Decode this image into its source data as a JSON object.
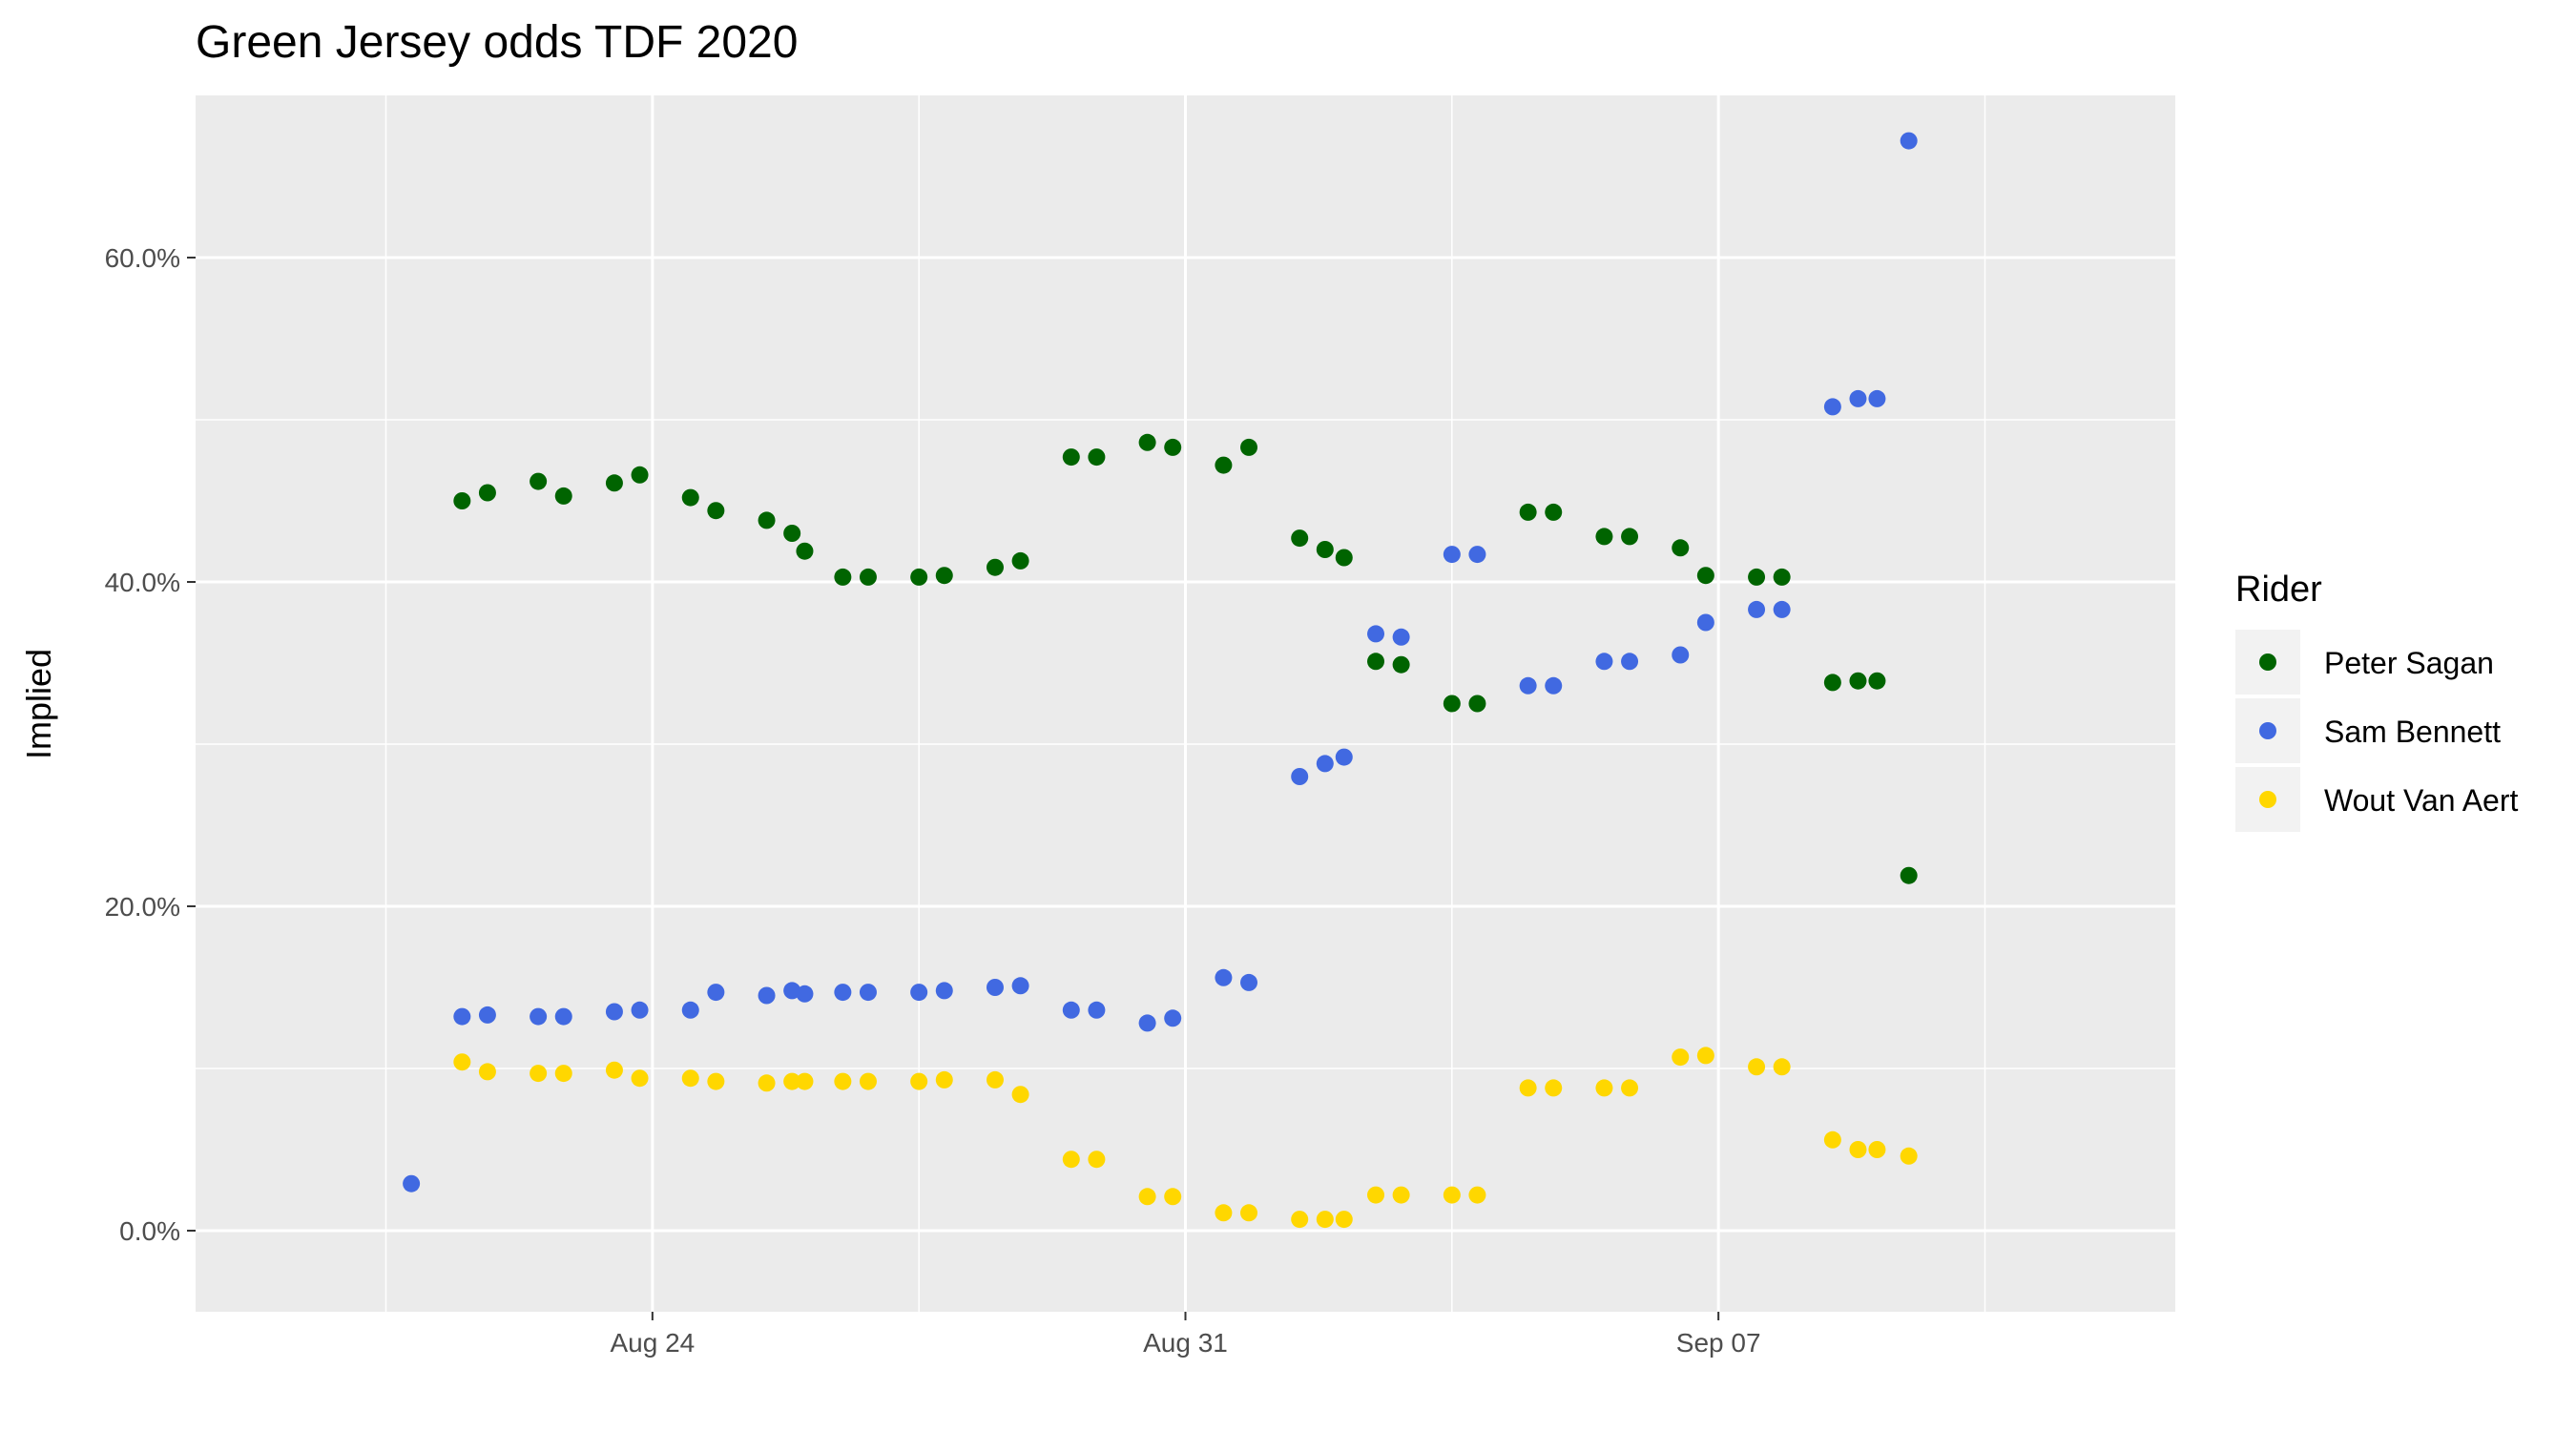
{
  "chart_data": {
    "type": "scatter",
    "title": "Green Jersey odds TDF 2020",
    "xlabel": "",
    "ylabel": "Implied",
    "x_axis": {
      "type": "date",
      "range": [
        "2020-08-18",
        "2020-09-13"
      ],
      "ticks": [
        {
          "value": "2020-08-24",
          "label": "Aug 24"
        },
        {
          "value": "2020-08-31",
          "label": "Aug 31"
        },
        {
          "value": "2020-09-07",
          "label": "Sep 07"
        }
      ],
      "minor_ticks": [
        "2020-08-20T12:00",
        "2020-08-27T12:00",
        "2020-09-03T12:00",
        "2020-09-10T12:00"
      ]
    },
    "y_axis": {
      "range": [
        -0.05,
        0.7
      ],
      "ticks": [
        {
          "value": 0.0,
          "label": "0.0%"
        },
        {
          "value": 0.2,
          "label": "20.0%"
        },
        {
          "value": 0.4,
          "label": "40.0%"
        },
        {
          "value": 0.6,
          "label": "60.0%"
        }
      ],
      "minor_ticks": [
        0.1,
        0.3,
        0.5
      ]
    },
    "grid": true,
    "legend": {
      "title": "Rider",
      "position": "right"
    },
    "series": [
      {
        "name": "Peter Sagan",
        "color": "#006400",
        "points": [
          [
            "2020-08-21T12:00",
            0.45
          ],
          [
            "2020-08-21T20:00",
            0.455
          ],
          [
            "2020-08-22T12:00",
            0.462
          ],
          [
            "2020-08-22T20:00",
            0.453
          ],
          [
            "2020-08-23T12:00",
            0.461
          ],
          [
            "2020-08-23T20:00",
            0.466
          ],
          [
            "2020-08-24T12:00",
            0.452
          ],
          [
            "2020-08-24T20:00",
            0.444
          ],
          [
            "2020-08-25T12:00",
            0.438
          ],
          [
            "2020-08-25T20:00",
            0.43
          ],
          [
            "2020-08-26T00:00",
            0.419
          ],
          [
            "2020-08-26T12:00",
            0.403
          ],
          [
            "2020-08-26T20:00",
            0.403
          ],
          [
            "2020-08-27T12:00",
            0.403
          ],
          [
            "2020-08-27T20:00",
            0.404
          ],
          [
            "2020-08-28T12:00",
            0.409
          ],
          [
            "2020-08-28T20:00",
            0.413
          ],
          [
            "2020-08-29T12:00",
            0.477
          ],
          [
            "2020-08-29T20:00",
            0.477
          ],
          [
            "2020-08-30T12:00",
            0.486
          ],
          [
            "2020-08-30T20:00",
            0.483
          ],
          [
            "2020-08-31T12:00",
            0.472
          ],
          [
            "2020-08-31T20:00",
            0.483
          ],
          [
            "2020-09-01T12:00",
            0.427
          ],
          [
            "2020-09-01T20:00",
            0.42
          ],
          [
            "2020-09-02T02:00",
            0.415
          ],
          [
            "2020-09-02T12:00",
            0.351
          ],
          [
            "2020-09-02T20:00",
            0.349
          ],
          [
            "2020-09-03T12:00",
            0.325
          ],
          [
            "2020-09-03T20:00",
            0.325
          ],
          [
            "2020-09-04T12:00",
            0.443
          ],
          [
            "2020-09-04T20:00",
            0.443
          ],
          [
            "2020-09-05T12:00",
            0.428
          ],
          [
            "2020-09-05T20:00",
            0.428
          ],
          [
            "2020-09-06T12:00",
            0.421
          ],
          [
            "2020-09-06T20:00",
            0.404
          ],
          [
            "2020-09-07T12:00",
            0.403
          ],
          [
            "2020-09-07T20:00",
            0.403
          ],
          [
            "2020-09-08T12:00",
            0.338
          ],
          [
            "2020-09-08T20:00",
            0.339
          ],
          [
            "2020-09-09T02:00",
            0.339
          ],
          [
            "2020-09-09T12:00",
            0.219
          ]
        ]
      },
      {
        "name": "Sam Bennett",
        "color": "#4169E1",
        "points": [
          [
            "2020-08-20T20:00",
            0.029
          ],
          [
            "2020-08-21T12:00",
            0.132
          ],
          [
            "2020-08-21T20:00",
            0.133
          ],
          [
            "2020-08-22T12:00",
            0.132
          ],
          [
            "2020-08-22T20:00",
            0.132
          ],
          [
            "2020-08-23T12:00",
            0.135
          ],
          [
            "2020-08-23T20:00",
            0.136
          ],
          [
            "2020-08-24T12:00",
            0.136
          ],
          [
            "2020-08-24T20:00",
            0.147
          ],
          [
            "2020-08-25T12:00",
            0.145
          ],
          [
            "2020-08-25T20:00",
            0.148
          ],
          [
            "2020-08-26T00:00",
            0.146
          ],
          [
            "2020-08-26T12:00",
            0.147
          ],
          [
            "2020-08-26T20:00",
            0.147
          ],
          [
            "2020-08-27T12:00",
            0.147
          ],
          [
            "2020-08-27T20:00",
            0.148
          ],
          [
            "2020-08-28T12:00",
            0.15
          ],
          [
            "2020-08-28T20:00",
            0.151
          ],
          [
            "2020-08-29T12:00",
            0.136
          ],
          [
            "2020-08-29T20:00",
            0.136
          ],
          [
            "2020-08-30T12:00",
            0.128
          ],
          [
            "2020-08-30T20:00",
            0.131
          ],
          [
            "2020-08-31T12:00",
            0.156
          ],
          [
            "2020-08-31T20:00",
            0.153
          ],
          [
            "2020-09-01T12:00",
            0.28
          ],
          [
            "2020-09-01T20:00",
            0.288
          ],
          [
            "2020-09-02T02:00",
            0.292
          ],
          [
            "2020-09-02T12:00",
            0.368
          ],
          [
            "2020-09-02T20:00",
            0.366
          ],
          [
            "2020-09-03T12:00",
            0.417
          ],
          [
            "2020-09-03T20:00",
            0.417
          ],
          [
            "2020-09-04T12:00",
            0.336
          ],
          [
            "2020-09-04T20:00",
            0.336
          ],
          [
            "2020-09-05T12:00",
            0.351
          ],
          [
            "2020-09-05T20:00",
            0.351
          ],
          [
            "2020-09-06T12:00",
            0.355
          ],
          [
            "2020-09-06T20:00",
            0.375
          ],
          [
            "2020-09-07T12:00",
            0.383
          ],
          [
            "2020-09-07T20:00",
            0.383
          ],
          [
            "2020-09-08T12:00",
            0.508
          ],
          [
            "2020-09-08T20:00",
            0.513
          ],
          [
            "2020-09-09T02:00",
            0.513
          ],
          [
            "2020-09-09T12:00",
            0.672
          ]
        ]
      },
      {
        "name": "Wout Van Aert",
        "color": "#FFD700",
        "points": [
          [
            "2020-08-21T12:00",
            0.104
          ],
          [
            "2020-08-21T20:00",
            0.098
          ],
          [
            "2020-08-22T12:00",
            0.097
          ],
          [
            "2020-08-22T20:00",
            0.097
          ],
          [
            "2020-08-23T12:00",
            0.099
          ],
          [
            "2020-08-23T20:00",
            0.094
          ],
          [
            "2020-08-24T12:00",
            0.094
          ],
          [
            "2020-08-24T20:00",
            0.092
          ],
          [
            "2020-08-25T12:00",
            0.091
          ],
          [
            "2020-08-25T20:00",
            0.092
          ],
          [
            "2020-08-26T00:00",
            0.092
          ],
          [
            "2020-08-26T12:00",
            0.092
          ],
          [
            "2020-08-26T20:00",
            0.092
          ],
          [
            "2020-08-27T12:00",
            0.092
          ],
          [
            "2020-08-27T20:00",
            0.093
          ],
          [
            "2020-08-28T12:00",
            0.093
          ],
          [
            "2020-08-28T20:00",
            0.084
          ],
          [
            "2020-08-29T12:00",
            0.044
          ],
          [
            "2020-08-29T20:00",
            0.044
          ],
          [
            "2020-08-30T12:00",
            0.021
          ],
          [
            "2020-08-30T20:00",
            0.021
          ],
          [
            "2020-08-31T12:00",
            0.011
          ],
          [
            "2020-08-31T20:00",
            0.011
          ],
          [
            "2020-09-01T12:00",
            0.007
          ],
          [
            "2020-09-01T20:00",
            0.007
          ],
          [
            "2020-09-02T02:00",
            0.007
          ],
          [
            "2020-09-02T12:00",
            0.022
          ],
          [
            "2020-09-02T20:00",
            0.022
          ],
          [
            "2020-09-03T12:00",
            0.022
          ],
          [
            "2020-09-03T20:00",
            0.022
          ],
          [
            "2020-09-04T12:00",
            0.088
          ],
          [
            "2020-09-04T20:00",
            0.088
          ],
          [
            "2020-09-05T12:00",
            0.088
          ],
          [
            "2020-09-05T20:00",
            0.088
          ],
          [
            "2020-09-06T12:00",
            0.107
          ],
          [
            "2020-09-06T20:00",
            0.108
          ],
          [
            "2020-09-07T12:00",
            0.101
          ],
          [
            "2020-09-07T20:00",
            0.101
          ],
          [
            "2020-09-08T12:00",
            0.056
          ],
          [
            "2020-09-08T20:00",
            0.05
          ],
          [
            "2020-09-09T02:00",
            0.05
          ],
          [
            "2020-09-09T12:00",
            0.046
          ]
        ]
      }
    ]
  }
}
